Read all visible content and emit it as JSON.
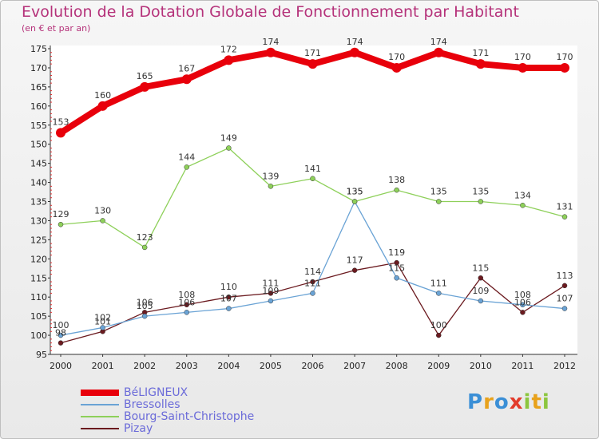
{
  "title": "Evolution de la Dotation Globale de Fonctionnement par Habitant",
  "subtitle": "(en € et par an)",
  "logo": {
    "text": "Proxiti",
    "colors": [
      "#3b8fd6",
      "#e8a21c",
      "#3b8fd6",
      "#e23b2b",
      "#8cc63f",
      "#e8a21c",
      "#8cc63f"
    ]
  },
  "chart_data": {
    "type": "line",
    "x": [
      "2000",
      "2001",
      "2002",
      "2003",
      "2004",
      "2005",
      "2006",
      "2007",
      "2008",
      "2009",
      "2010",
      "2011",
      "2012"
    ],
    "ylim": [
      95,
      175
    ],
    "yticks": [
      95,
      100,
      105,
      110,
      115,
      120,
      125,
      130,
      135,
      140,
      145,
      150,
      155,
      160,
      165,
      170,
      175
    ],
    "grid": false,
    "legend_position": "bottom-left",
    "series": [
      {
        "name": "BéLIGNEUX",
        "color": "#e8000b",
        "values": [
          153,
          160,
          165,
          167,
          172,
          174,
          171,
          174,
          170,
          174,
          171,
          170,
          170
        ],
        "labels": [
          "153",
          "160",
          "165",
          "167",
          "172",
          "174",
          "171",
          "174",
          "170",
          "174",
          "171",
          "170",
          "170"
        ]
      },
      {
        "name": "Bressolles",
        "color": "#6aa3d5",
        "values": [
          100,
          102,
          105,
          106,
          107,
          109,
          111,
          135,
          115,
          111,
          109,
          108,
          107
        ],
        "labels": [
          "100",
          "102",
          "105",
          "106",
          "107",
          "109",
          "111",
          "135",
          "115",
          "111",
          "109",
          "108",
          "107"
        ]
      },
      {
        "name": "Bourg-Saint-Christophe",
        "color": "#8ed05a",
        "values": [
          129,
          130,
          123,
          144,
          149,
          139,
          141,
          135,
          138,
          135,
          135,
          134,
          131
        ],
        "labels": [
          "129",
          "130",
          "123",
          "144",
          "149",
          "139",
          "141",
          "135",
          "138",
          "135",
          "135",
          "134",
          "131"
        ]
      },
      {
        "name": "Pizay",
        "color": "#6b1a1f",
        "values": [
          98,
          101,
          106,
          108,
          110,
          111,
          114,
          117,
          119,
          100,
          115,
          106,
          113
        ],
        "labels": [
          "98",
          "101",
          "106",
          "108",
          "110",
          "111",
          "114",
          "117",
          "119",
          "100",
          "115",
          "106",
          "113"
        ]
      }
    ]
  }
}
